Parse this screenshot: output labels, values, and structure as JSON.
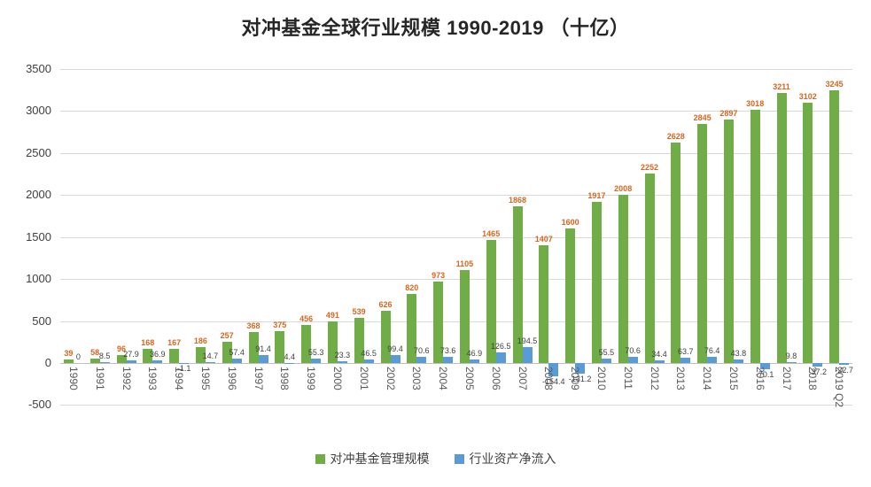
{
  "title": "对冲基金全球行业规模 1990-2019 （十亿）",
  "chart_data": {
    "type": "bar",
    "categories": [
      "1990",
      "1991",
      "1992",
      "1993",
      "1994",
      "1995",
      "1996",
      "1997",
      "1998",
      "1999",
      "2000",
      "2001",
      "2002",
      "2003",
      "2004",
      "2005",
      "2006",
      "2007",
      "2008",
      "2009",
      "2010",
      "2011",
      "2012",
      "2013",
      "2014",
      "2015",
      "2016",
      "2017",
      "2018",
      "2019 Q2"
    ],
    "series": [
      {
        "name": "对冲基金管理规模",
        "color": "#70ad47",
        "label_color": "#d9651e",
        "values": [
          39,
          58,
          96,
          168,
          167,
          186,
          257,
          368,
          375,
          456,
          491,
          539,
          626,
          820,
          973,
          1105,
          1465,
          1868,
          1407,
          1600,
          1917,
          2008,
          2252,
          2628,
          2845,
          2897,
          3018,
          3211,
          3102,
          3245
        ]
      },
      {
        "name": "行业资产净流入",
        "color": "#5b9bd5",
        "label_color": "#404040",
        "values": [
          0,
          8.5,
          27.9,
          36.9,
          -1.1,
          14.7,
          57.4,
          91.4,
          4.4,
          55.3,
          23.3,
          46.5,
          99.4,
          70.6,
          73.6,
          46.9,
          126.5,
          194.5,
          -154.4,
          -131.2,
          55.5,
          70.6,
          34.4,
          63.7,
          76.4,
          43.8,
          -70.1,
          9.8,
          -37.2,
          -22.7
        ]
      }
    ],
    "ylim": [
      -500,
      3500
    ],
    "ytick_step": 500,
    "yticks": [
      "3500",
      "3000",
      "2500",
      "2000",
      "1500",
      "1000",
      "500",
      "0",
      "-500"
    ],
    "grid": true,
    "legend_position": "bottom"
  },
  "colors": {
    "grid": "#d9d9d9",
    "axis": "#bfbfbf",
    "background": "#ffffff"
  }
}
